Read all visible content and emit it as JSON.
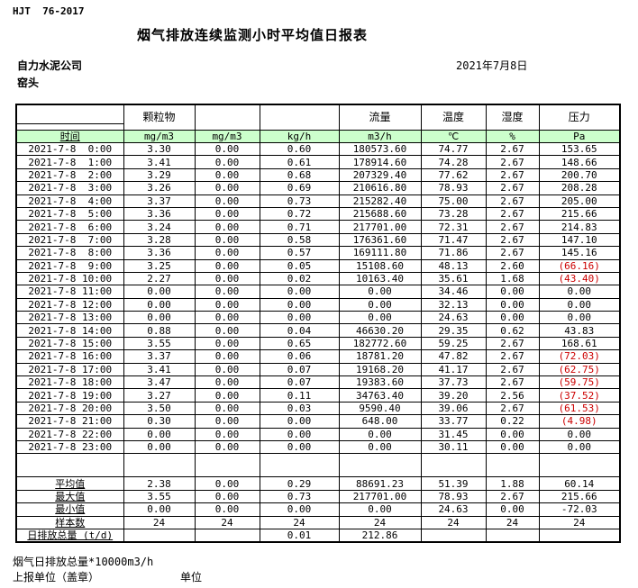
{
  "page": {
    "standard_code": "HJT  76-2017",
    "title": "烟气排放连续监测小时平均值日报表",
    "company": "自力水泥公司",
    "station": "窑头",
    "date": "2021年7月8日"
  },
  "colors": {
    "header_green": "#ccffcc",
    "negative_red": "#cc0000"
  },
  "table": {
    "header_groups": [
      "",
      "颗粒物",
      "",
      "",
      "流量",
      "温度",
      "湿度",
      "压力"
    ],
    "unit_row": [
      "时间",
      "mg/m3",
      "mg/m3",
      "kg/h",
      "m3/h",
      "℃",
      "%",
      "Pa"
    ],
    "rows": [
      [
        "2021-7-8  0:00",
        "3.30",
        "0.00",
        "0.60",
        "180573.60",
        "74.77",
        "2.67",
        "153.65"
      ],
      [
        "2021-7-8  1:00",
        "3.41",
        "0.00",
        "0.61",
        "178914.60",
        "74.28",
        "2.67",
        "148.66"
      ],
      [
        "2021-7-8  2:00",
        "3.29",
        "0.00",
        "0.68",
        "207329.40",
        "77.62",
        "2.67",
        "200.70"
      ],
      [
        "2021-7-8  3:00",
        "3.26",
        "0.00",
        "0.69",
        "210616.80",
        "78.93",
        "2.67",
        "208.28"
      ],
      [
        "2021-7-8  4:00",
        "3.37",
        "0.00",
        "0.73",
        "215282.40",
        "75.00",
        "2.67",
        "205.00"
      ],
      [
        "2021-7-8  5:00",
        "3.36",
        "0.00",
        "0.72",
        "215688.60",
        "73.28",
        "2.67",
        "215.66"
      ],
      [
        "2021-7-8  6:00",
        "3.24",
        "0.00",
        "0.71",
        "217701.00",
        "72.31",
        "2.67",
        "214.83"
      ],
      [
        "2021-7-8  7:00",
        "3.28",
        "0.00",
        "0.58",
        "176361.60",
        "71.47",
        "2.67",
        "147.10"
      ],
      [
        "2021-7-8  8:00",
        "3.36",
        "0.00",
        "0.57",
        "169111.80",
        "71.86",
        "2.67",
        "145.16"
      ],
      [
        "2021-7-8  9:00",
        "3.25",
        "0.00",
        "0.05",
        "15108.60",
        "48.13",
        "2.60",
        "(66.16)"
      ],
      [
        "2021-7-8 10:00",
        "2.27",
        "0.00",
        "0.02",
        "10163.40",
        "35.61",
        "1.68",
        "(43.40)"
      ],
      [
        "2021-7-8 11:00",
        "0.00",
        "0.00",
        "0.00",
        "0.00",
        "34.46",
        "0.00",
        "0.00"
      ],
      [
        "2021-7-8 12:00",
        "0.00",
        "0.00",
        "0.00",
        "0.00",
        "32.13",
        "0.00",
        "0.00"
      ],
      [
        "2021-7-8 13:00",
        "0.00",
        "0.00",
        "0.00",
        "0.00",
        "24.63",
        "0.00",
        "0.00"
      ],
      [
        "2021-7-8 14:00",
        "0.88",
        "0.00",
        "0.04",
        "46630.20",
        "29.35",
        "0.62",
        "43.83"
      ],
      [
        "2021-7-8 15:00",
        "3.55",
        "0.00",
        "0.65",
        "182772.60",
        "59.25",
        "2.67",
        "168.61"
      ],
      [
        "2021-7-8 16:00",
        "3.37",
        "0.00",
        "0.06",
        "18781.20",
        "47.82",
        "2.67",
        "(72.03)"
      ],
      [
        "2021-7-8 17:00",
        "3.41",
        "0.00",
        "0.07",
        "19168.20",
        "41.17",
        "2.67",
        "(62.75)"
      ],
      [
        "2021-7-8 18:00",
        "3.47",
        "0.00",
        "0.07",
        "19383.60",
        "37.73",
        "2.67",
        "(59.75)"
      ],
      [
        "2021-7-8 19:00",
        "3.27",
        "0.00",
        "0.11",
        "34763.40",
        "39.20",
        "2.56",
        "(37.52)"
      ],
      [
        "2021-7-8 20:00",
        "3.50",
        "0.00",
        "0.03",
        "9590.40",
        "39.06",
        "2.67",
        "(61.53)"
      ],
      [
        "2021-7-8 21:00",
        "0.30",
        "0.00",
        "0.00",
        "648.00",
        "33.77",
        "0.22",
        "(4.98)"
      ],
      [
        "2021-7-8 22:00",
        "0.00",
        "0.00",
        "0.00",
        "0.00",
        "31.45",
        "0.00",
        "0.00"
      ],
      [
        "2021-7-8 23:00",
        "0.00",
        "0.00",
        "0.00",
        "0.00",
        "30.11",
        "0.00",
        "0.00"
      ]
    ],
    "summary": [
      {
        "label": "平均值",
        "values": [
          "2.38",
          "0.00",
          "0.29",
          "88691.23",
          "51.39",
          "1.88",
          "60.14"
        ]
      },
      {
        "label": "最大值",
        "values": [
          "3.55",
          "0.00",
          "0.73",
          "217701.00",
          "78.93",
          "2.67",
          "215.66"
        ]
      },
      {
        "label": "最小值",
        "values": [
          "0.00",
          "0.00",
          "0.00",
          "0.00",
          "24.63",
          "0.00",
          "-72.03"
        ]
      },
      {
        "label": "样本数",
        "values": [
          "24",
          "24",
          "24",
          "24",
          "24",
          "24",
          "24"
        ]
      },
      {
        "label": "日排放总量 (t/d)",
        "values": [
          "",
          "",
          "0.01",
          "212.86",
          "",
          "",
          ""
        ],
        "label_align": "left"
      }
    ]
  },
  "footer": {
    "note": "烟气日排放总量*10000m3/h",
    "reporting_unit": "上报单位（盖章）",
    "unit": "单位"
  }
}
